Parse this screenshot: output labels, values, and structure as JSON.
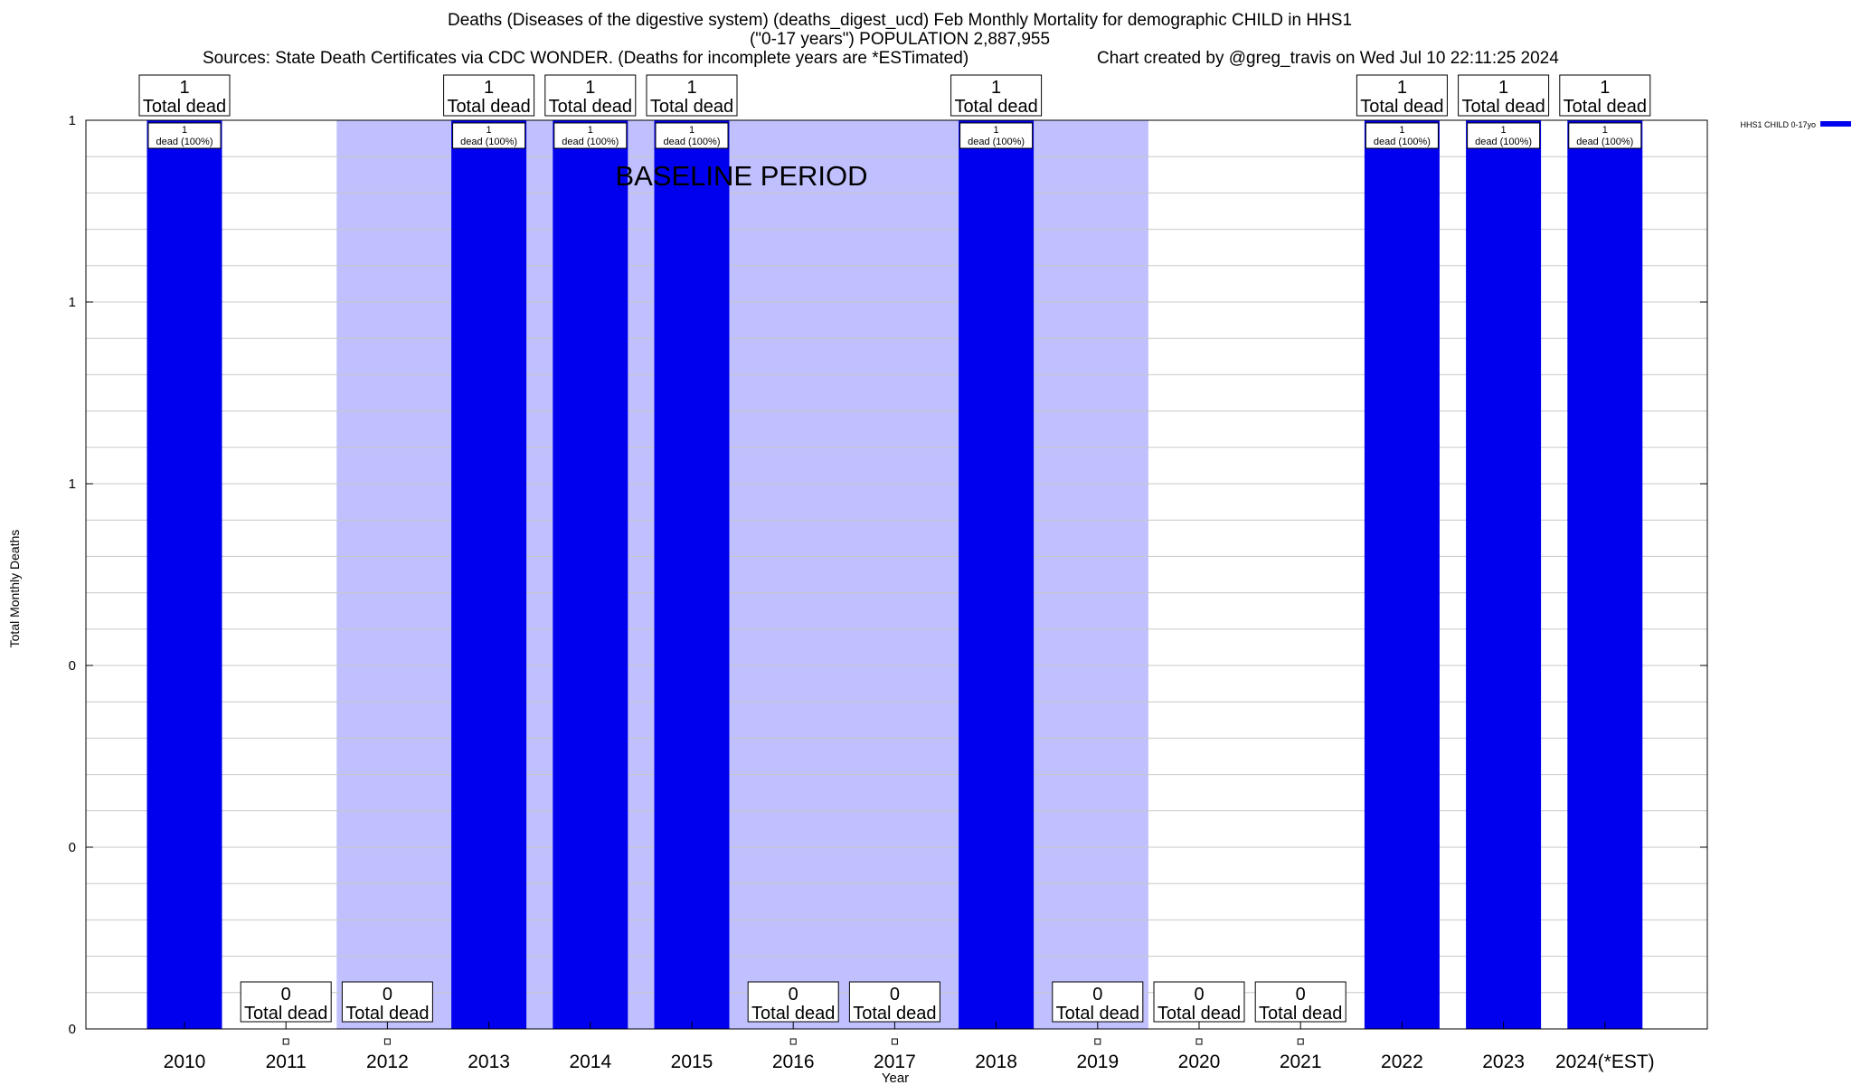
{
  "title_line1": "Deaths (Diseases of the digestive system) (deaths_digest_ucd) Feb Monthly Mortality for demographic CHILD in HHS1",
  "title_line2": "(\"0-17 years\") POPULATION 2,887,955",
  "sources": "Sources: State Death Certificates via CDC WONDER. (Deaths for incomplete years are *ESTimated)",
  "credit": "Chart created by @greg_travis on Wed Jul 10 22:11:25 2024",
  "colors": {
    "bar": "#0000ee",
    "baseline": "#c0c0ff",
    "grid": "#c8c8c8"
  },
  "chart_data": {
    "type": "bar",
    "categories": [
      "2010",
      "2011",
      "2012",
      "2013",
      "2014",
      "2015",
      "2016",
      "2017",
      "2018",
      "2019",
      "2020",
      "2021",
      "2022",
      "2023",
      "2024(*EST)"
    ],
    "series": [
      {
        "name": "HHS1 CHILD 0-17yo",
        "values": [
          1,
          0,
          0,
          1,
          1,
          1,
          0,
          0,
          1,
          0,
          0,
          0,
          1,
          1,
          1
        ]
      }
    ],
    "total_labels": [
      "1\nTotal dead",
      "0\nTotal dead",
      "0\nTotal dead",
      "1\nTotal dead",
      "1\nTotal dead",
      "1\nTotal dead",
      "0\nTotal dead",
      "0\nTotal dead",
      "1\nTotal dead",
      "0\nTotal dead",
      "0\nTotal dead",
      "0\nTotal dead",
      "1\nTotal dead",
      "1\nTotal dead",
      "1\nTotal dead"
    ],
    "bar_labels": [
      "1\ndead (100%)",
      "",
      "",
      "1\ndead (100%)",
      "1\ndead (100%)",
      "1\ndead (100%)",
      "",
      "",
      "1\ndead (100%)",
      "",
      "",
      "",
      "1\ndead (100%)",
      "1\ndead (100%)",
      "1\ndead (100%)"
    ],
    "baseline_period": {
      "label": "BASELINE PERIOD",
      "from": "2012",
      "to": "2019"
    },
    "xlabel": "Year",
    "ylabel": "Total Monthly Deaths",
    "ylim": [
      0,
      1
    ],
    "yticks": [
      0,
      0.2,
      0.4,
      0.6,
      0.8,
      1.0
    ],
    "ytick_labels": [
      "0",
      "0",
      "0",
      "1",
      "1",
      "1"
    ],
    "grid": true,
    "legend": "top-right"
  }
}
